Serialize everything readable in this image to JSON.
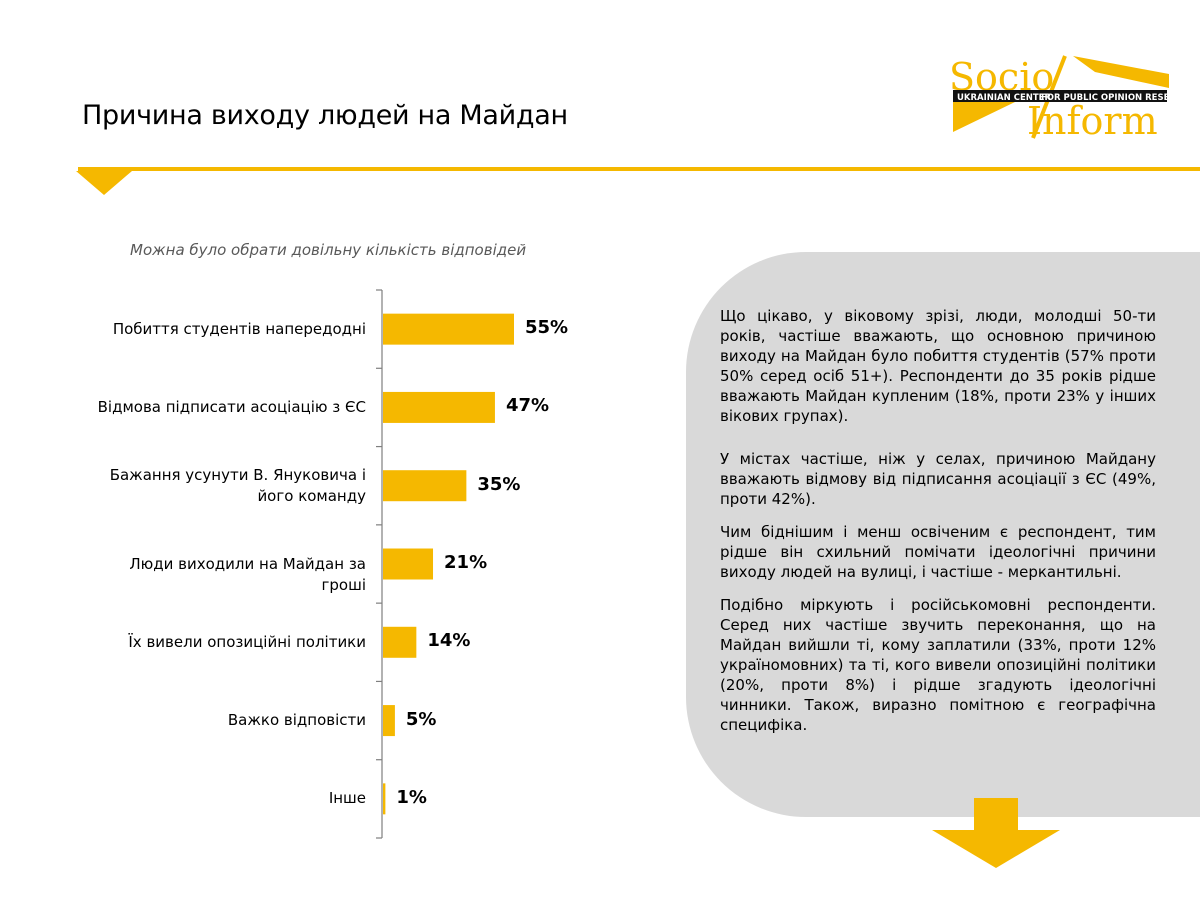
{
  "page": {
    "title": "Причина виходу людей на Майдан",
    "note": "Можна було обрати довільну кількість відповідей"
  },
  "logo": {
    "word_top": "Socio",
    "word_bottom": "Inform",
    "banner_left": "UKRAINIAN CENTER",
    "banner_right": "FOR PUBLIC OPINION RESEARCH",
    "color": "#f5b800"
  },
  "colors": {
    "accent": "#f5b800",
    "panel": "#d9d9d9"
  },
  "chart_data": {
    "type": "bar",
    "orientation": "horizontal",
    "categories": [
      "Побиття студентів напередодні",
      "Відмова підписати асоціацію з ЄС",
      "Бажання усунути В. Януковича і його команду",
      "Люди виходили на Майдан за гроші",
      "Їх вивели опозиційні політики",
      "Важко відповісти",
      "Інше"
    ],
    "values": [
      55,
      47,
      35,
      21,
      14,
      5,
      1
    ],
    "value_labels": [
      "55%",
      "47%",
      "35%",
      "21%",
      "14%",
      "5%",
      "1%"
    ],
    "unit": "%",
    "xlim": [
      0,
      100
    ],
    "grid": false,
    "legend": "none",
    "bar_color": "#f5b800",
    "title": "",
    "xlabel": "",
    "ylabel": ""
  },
  "panel": {
    "paragraphs": [
      "Що цікаво, у віковому зрізі, люди, молодші 50-ти років, частіше вважають, що основною причиною виходу на Майдан було побиття студентів (57% проти 50% серед осіб 51+). Респонденти до 35 років рідше вважають Майдан купленим (18%, проти 23% у інших вікових групах).",
      "У містах частіше, ніж у селах, причиною Майдану вважають відмову від підписання асоціації з ЄС (49%, проти 42%).",
      "Чим біднішим і менш освіченим є респондент, тим рідше він схильний помічати ідеологічні причини виходу людей на вулиці, і частіше - меркантильні.",
      "Подібно міркують і російськомовні респонденти. Серед них частіше звучить переконання, що на Майдан вийшли ті, кому заплатили (33%, проти 12% україномовних) та ті, кого вивели опозиційні політики (20%, проти 8%) і рідше згадують ідеологічні чинники. Також, виразно помітною є географічна специфіка."
    ]
  }
}
